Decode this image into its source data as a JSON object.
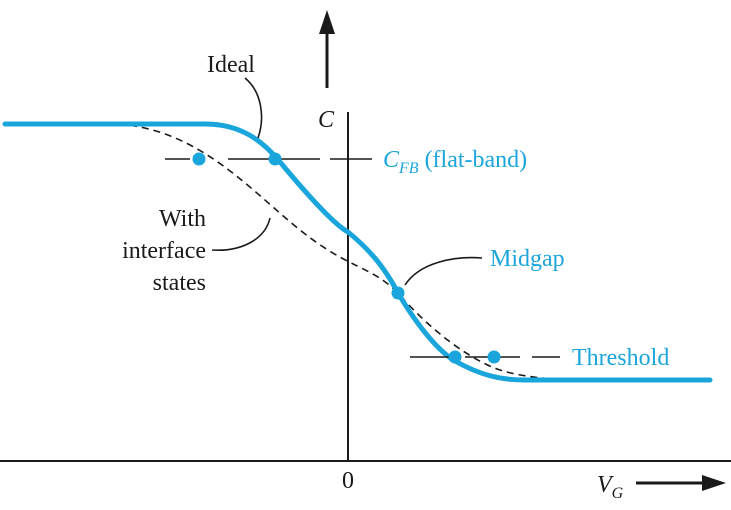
{
  "axes": {
    "x_label": "V",
    "x_label_sub": "G",
    "y_label": "C",
    "origin_label": "0"
  },
  "annotations": {
    "ideal": "Ideal",
    "interface_line1": "With",
    "interface_line2": "interface",
    "interface_line3": "states",
    "cfb_main": "C",
    "cfb_sub": "FB",
    "cfb_suffix": " (flat-band)",
    "midgap": "Midgap",
    "threshold": "Threshold"
  },
  "colors": {
    "ideal_curve": "#1aa6dc",
    "interface_curve": "#1a1a1a",
    "axis": "#1a1a1a",
    "label_accent": "#1aa6dc"
  }
}
